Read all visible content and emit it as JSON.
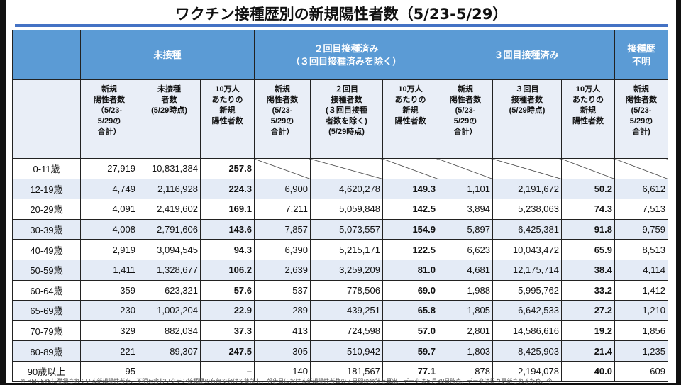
{
  "title": "ワクチン接種歴別の新規陽性者数（5/23-5/29）",
  "groups": [
    "未接種",
    "２回目接種済み\n（３回目接種済みを除く）",
    "３回目接種済み",
    "接種歴\n不明"
  ],
  "subheaders": [
    "新規\n陽性者数\n（5/23-\n5/29の\n合計）",
    "未接種\n者数\n(5/29時点)",
    "10万人\nあたりの\n新規\n陽性者数",
    "新規\n陽性者数\n(5/23-\n5/29の\n合計）",
    "２回目\n接種者数\n(３回目接種\n者数を除く)\n(5/29時点)",
    "10万人\nあたりの\n新規\n陽性者数",
    "新規\n陽性者数\n(5/23-\n5/29の\n合計）",
    "３回目\n接種者数\n(5/29時点)",
    "10万人\nあたりの\n新規\n陽性者数",
    "新規\n陽性者数\n(5/23-\n5/29の\n合計)"
  ],
  "rows": [
    [
      "0-11歳",
      "27,919",
      "10,831,384",
      "257.8",
      null,
      null,
      null,
      null,
      null,
      null,
      null
    ],
    [
      "12-19歳",
      "4,749",
      "2,116,928",
      "224.3",
      "6,900",
      "4,620,278",
      "149.3",
      "1,101",
      "2,191,672",
      "50.2",
      "6,612"
    ],
    [
      "20-29歳",
      "4,091",
      "2,419,602",
      "169.1",
      "7,211",
      "5,059,848",
      "142.5",
      "3,894",
      "5,238,063",
      "74.3",
      "7,513"
    ],
    [
      "30-39歳",
      "4,008",
      "2,791,606",
      "143.6",
      "7,857",
      "5,073,557",
      "154.9",
      "5,897",
      "6,425,381",
      "91.8",
      "9,759"
    ],
    [
      "40-49歳",
      "2,919",
      "3,094,545",
      "94.3",
      "6,390",
      "5,215,171",
      "122.5",
      "6,623",
      "10,043,472",
      "65.9",
      "8,513"
    ],
    [
      "50-59歳",
      "1,411",
      "1,328,677",
      "106.2",
      "2,639",
      "3,259,209",
      "81.0",
      "4,681",
      "12,175,714",
      "38.4",
      "4,114"
    ],
    [
      "60-64歳",
      "359",
      "623,321",
      "57.6",
      "537",
      "778,506",
      "69.0",
      "1,988",
      "5,995,762",
      "33.2",
      "1,412"
    ],
    [
      "65-69歳",
      "230",
      "1,002,204",
      "22.9",
      "289",
      "439,251",
      "65.8",
      "1,805",
      "6,642,533",
      "27.2",
      "1,210"
    ],
    [
      "70-79歳",
      "329",
      "882,034",
      "37.3",
      "413",
      "724,598",
      "57.0",
      "2,801",
      "14,586,616",
      "19.2",
      "1,856"
    ],
    [
      "80-89歳",
      "221",
      "89,307",
      "247.5",
      "305",
      "510,942",
      "59.7",
      "1,803",
      "8,425,903",
      "21.4",
      "1,235"
    ],
    [
      "90歳以上",
      "95",
      "–",
      "–",
      "140",
      "181,567",
      "77.1",
      "878",
      "2,194,078",
      "40.0",
      "609"
    ]
  ],
  "footnote": "※ HER-SYSに登録されている新規陽性者を、不明を含むワクチン接種歴の有無で分けて集計し、報告日における新規陽性者数の７日間の合計を算出。データは５月30日時点。データは日々更新されるため、今"
}
